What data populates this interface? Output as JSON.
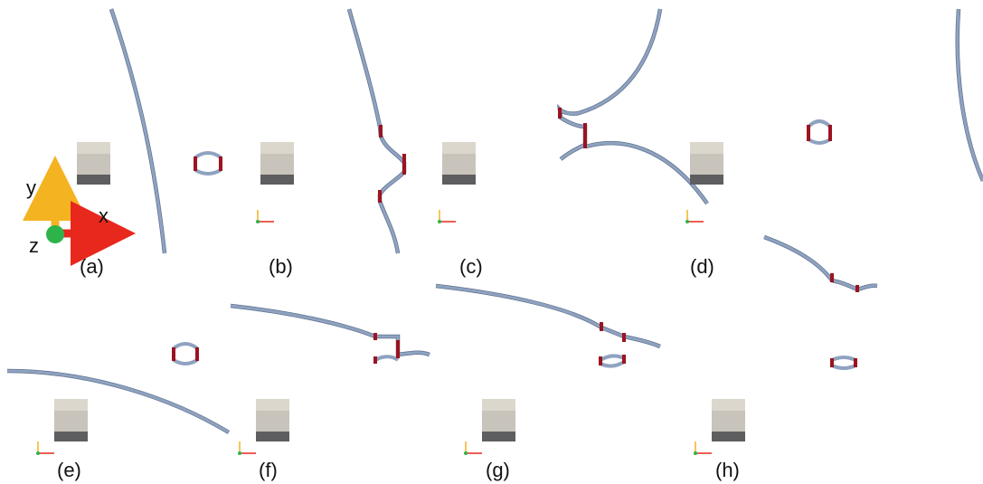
{
  "figure": {
    "axes_legend": {
      "x": "x",
      "y": "y",
      "z": "z"
    },
    "panels": [
      {
        "label": "(a)"
      },
      {
        "label": "(b)"
      },
      {
        "label": "(c)"
      },
      {
        "label": "(d)"
      },
      {
        "label": "(e)"
      },
      {
        "label": "(f)"
      },
      {
        "label": "(g)"
      },
      {
        "label": "(h)"
      }
    ],
    "colors": {
      "filament": "#8fa3c0",
      "filament_edge": "#5f7290",
      "reconnection_segment": "#9b1420",
      "box_top": "#dcd7cc",
      "box_middle": "#c8c4bb",
      "box_bottom": "#5e5e60",
      "axis_x": "#e8281c",
      "axis_y": "#f4b321",
      "axis_z": "#2db34a"
    }
  }
}
